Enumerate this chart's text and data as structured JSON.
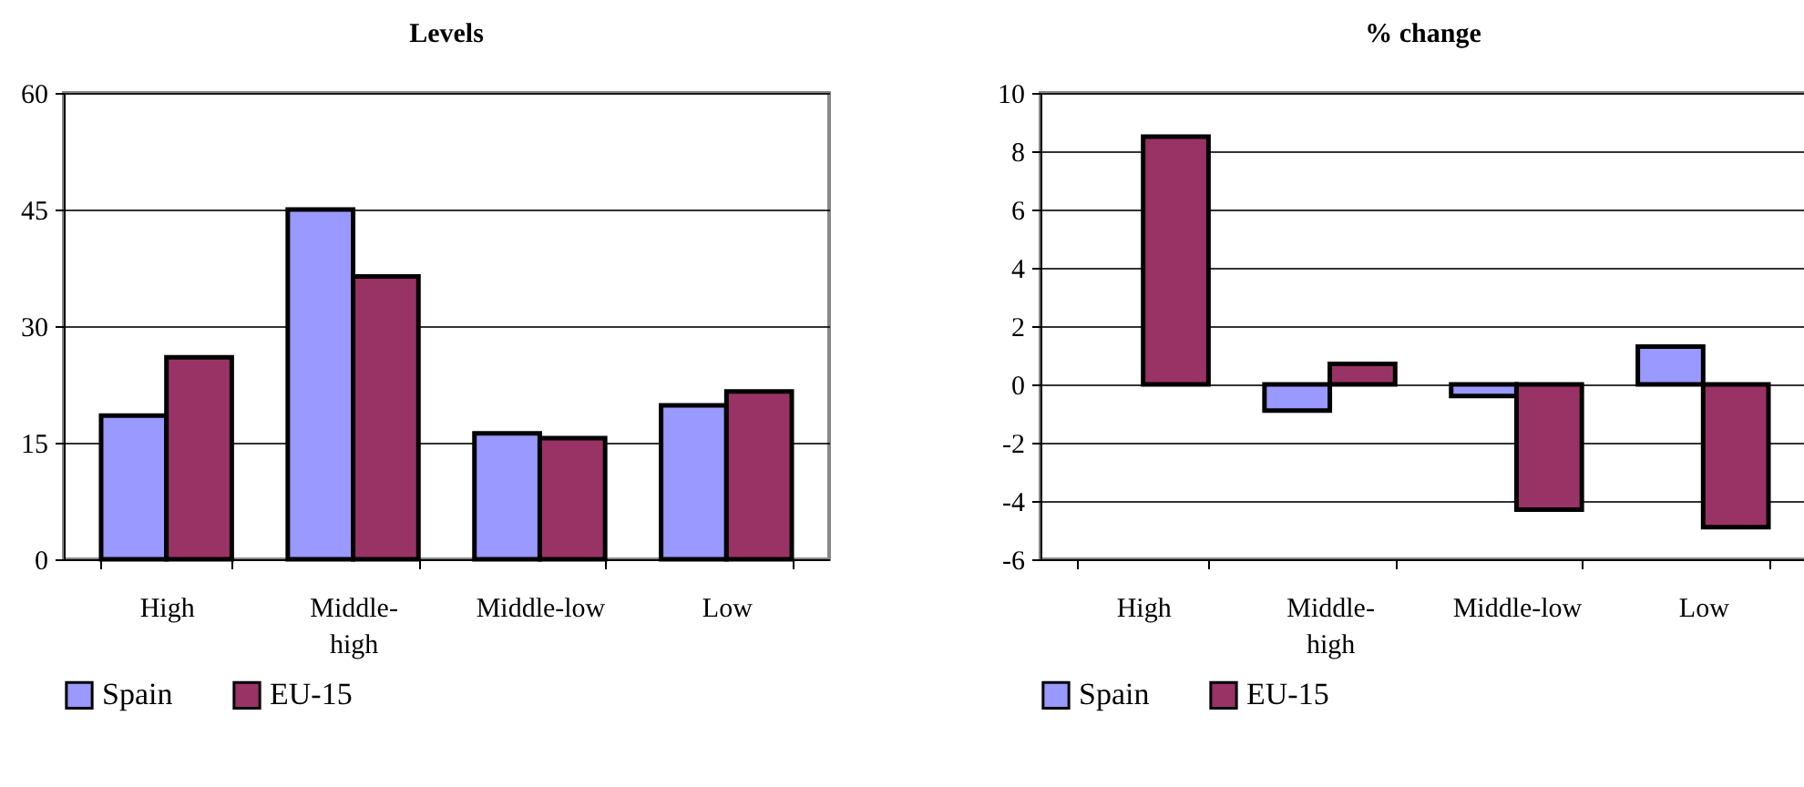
{
  "chart_data": [
    {
      "type": "bar",
      "title": "Levels",
      "categories": [
        "High",
        "Middle-high",
        "Middle-low",
        "Low"
      ],
      "series": [
        {
          "name": "Spain",
          "color": "#9999ff",
          "values": [
            18.5,
            45,
            16.2,
            19.8
          ]
        },
        {
          "name": "EU-15",
          "color": "#993366",
          "values": [
            26.0,
            36.4,
            15.6,
            21.6
          ]
        }
      ],
      "ylim": [
        0,
        60
      ],
      "yticks": [
        0,
        15,
        30,
        45,
        60
      ],
      "grid": "y",
      "legend": "bottom"
    },
    {
      "type": "bar",
      "title": "% change",
      "categories": [
        "High",
        "Middle-high",
        "Middle-low",
        "Low"
      ],
      "series": [
        {
          "name": "Spain",
          "color": "#9999ff",
          "values": [
            null,
            -0.9,
            -0.4,
            1.3
          ]
        },
        {
          "name": "EU-15",
          "color": "#993366",
          "values": [
            8.5,
            0.7,
            -4.3,
            -4.9
          ]
        }
      ],
      "ylim": [
        -6,
        10
      ],
      "yticks": [
        -6,
        -4,
        -2,
        0,
        2,
        4,
        6,
        8,
        10
      ],
      "grid": "y",
      "legend": "bottom"
    }
  ]
}
